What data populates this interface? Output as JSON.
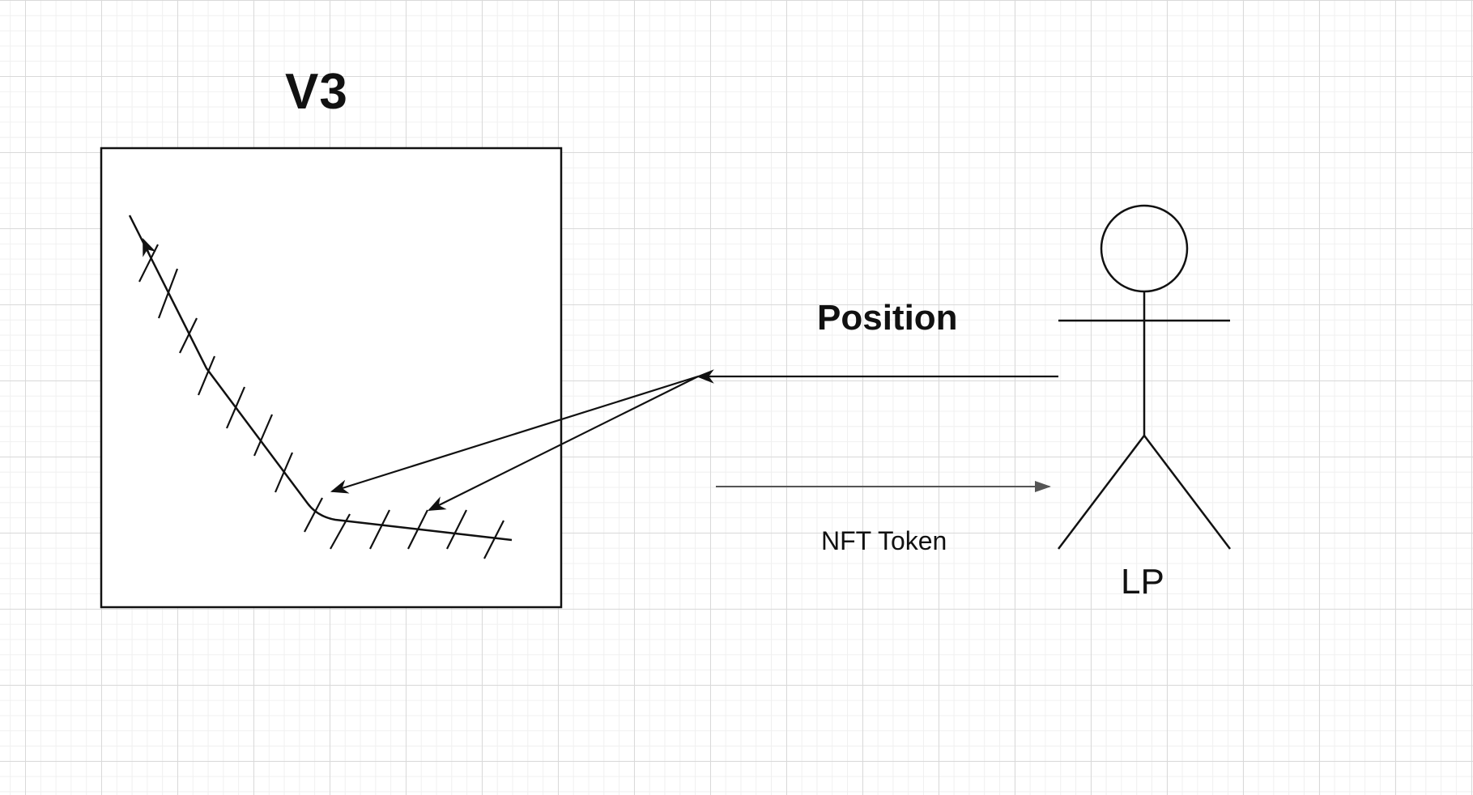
{
  "diagram": {
    "title": "V3",
    "arrow_top_label": "Position",
    "arrow_bottom_label": "NFT Token",
    "actor_label": "LP"
  }
}
